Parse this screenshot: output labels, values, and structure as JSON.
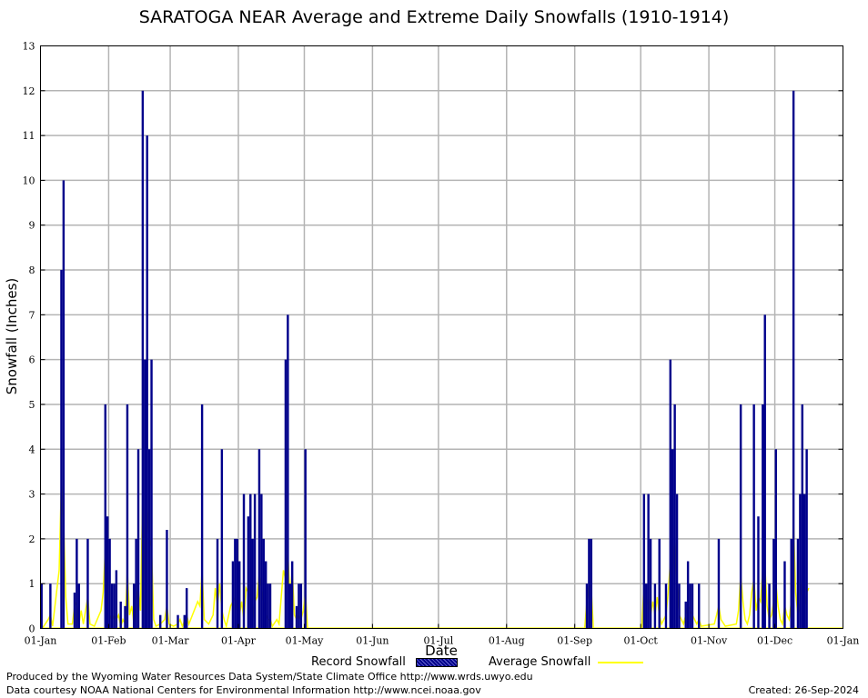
{
  "chart_data": {
    "type": "bar",
    "title": "SARATOGA NEAR Average and Extreme Daily Snowfalls (1910-1914)",
    "xlabel": "Date",
    "ylabel": "Snowfall (Inches)",
    "ylim": [
      0,
      13
    ],
    "yticks": [
      "0",
      "1",
      "2",
      "3",
      "4",
      "5",
      "6",
      "7",
      "8",
      "9",
      "10",
      "11",
      "12",
      "13"
    ],
    "xtick_labels": [
      "01-Jan",
      "01-Feb",
      "01-Mar",
      "01-Apr",
      "01-May",
      "01-Jun",
      "01-Jul",
      "01-Aug",
      "01-Sep",
      "01-Oct",
      "01-Nov",
      "01-Dec",
      "01-Jan"
    ],
    "xtick_days": [
      0,
      31,
      59,
      90,
      120,
      151,
      181,
      212,
      243,
      273,
      304,
      334,
      365
    ],
    "grid": true,
    "legend_position": "bottom",
    "series": [
      {
        "name": "Record Snowfall",
        "color": "#00008b",
        "points": [
          [
            0,
            1
          ],
          [
            4,
            1
          ],
          [
            9,
            8
          ],
          [
            10,
            10
          ],
          [
            15,
            0.8
          ],
          [
            16,
            2
          ],
          [
            17,
            1
          ],
          [
            21,
            2
          ],
          [
            29,
            5
          ],
          [
            30,
            2.5
          ],
          [
            31,
            2
          ],
          [
            32,
            1
          ],
          [
            33,
            1
          ],
          [
            34,
            1.3
          ],
          [
            36,
            0.6
          ],
          [
            38,
            0.5
          ],
          [
            39,
            5
          ],
          [
            42,
            1
          ],
          [
            43,
            2
          ],
          [
            44,
            4
          ],
          [
            46,
            12
          ],
          [
            47,
            6
          ],
          [
            48,
            11
          ],
          [
            49,
            4
          ],
          [
            50,
            6
          ],
          [
            54,
            0.3
          ],
          [
            57,
            2.2
          ],
          [
            62,
            0.3
          ],
          [
            65,
            0.3
          ],
          [
            66,
            0.9
          ],
          [
            73,
            5
          ],
          [
            80,
            2
          ],
          [
            82,
            4
          ],
          [
            87,
            1.5
          ],
          [
            88,
            2
          ],
          [
            89,
            2
          ],
          [
            90,
            1.5
          ],
          [
            92,
            3
          ],
          [
            94,
            2.5
          ],
          [
            95,
            3
          ],
          [
            96,
            2
          ],
          [
            97,
            3
          ],
          [
            99,
            4
          ],
          [
            100,
            3
          ],
          [
            101,
            2
          ],
          [
            102,
            1.5
          ],
          [
            103,
            1
          ],
          [
            104,
            1
          ],
          [
            111,
            6
          ],
          [
            112,
            7
          ],
          [
            113,
            1
          ],
          [
            114,
            1.5
          ],
          [
            116,
            0.5
          ],
          [
            117,
            1
          ],
          [
            118,
            1
          ],
          [
            120,
            4
          ],
          [
            248,
            1
          ],
          [
            249,
            2
          ],
          [
            250,
            2
          ],
          [
            274,
            3
          ],
          [
            275,
            1
          ],
          [
            276,
            3
          ],
          [
            277,
            2
          ],
          [
            279,
            1
          ],
          [
            281,
            2
          ],
          [
            284,
            1
          ],
          [
            286,
            6
          ],
          [
            287,
            4
          ],
          [
            288,
            5
          ],
          [
            289,
            3
          ],
          [
            290,
            1
          ],
          [
            293,
            0.6
          ],
          [
            294,
            1.5
          ],
          [
            295,
            1
          ],
          [
            296,
            1
          ],
          [
            299,
            1
          ],
          [
            308,
            2
          ],
          [
            318,
            5
          ],
          [
            324,
            5
          ],
          [
            326,
            2.5
          ],
          [
            328,
            5
          ],
          [
            329,
            7
          ],
          [
            331,
            1
          ],
          [
            333,
            2
          ],
          [
            334,
            4
          ],
          [
            338,
            1.5
          ],
          [
            341,
            2
          ],
          [
            342,
            12
          ],
          [
            344,
            2
          ],
          [
            345,
            3
          ],
          [
            346,
            5
          ],
          [
            347,
            3
          ],
          [
            348,
            4
          ]
        ]
      },
      {
        "name": "Average Snowfall",
        "color": "#ffff00",
        "points": [
          [
            0,
            0
          ],
          [
            1,
            0.05
          ],
          [
            3,
            0.2
          ],
          [
            4,
            0.3
          ],
          [
            5,
            0.05
          ],
          [
            8,
            1.3
          ],
          [
            9,
            3.3
          ],
          [
            10,
            2.4
          ],
          [
            11,
            0.7
          ],
          [
            12,
            0.1
          ],
          [
            14,
            0.1
          ],
          [
            15,
            0.5
          ],
          [
            16,
            0.6
          ],
          [
            17,
            0.1
          ],
          [
            18,
            0.4
          ],
          [
            19,
            0.1
          ],
          [
            21,
            0.7
          ],
          [
            22,
            0.1
          ],
          [
            24,
            0.05
          ],
          [
            27,
            0.4
          ],
          [
            28,
            0.8
          ],
          [
            29,
            1.8
          ],
          [
            30,
            1.0
          ],
          [
            31,
            0.3
          ],
          [
            32,
            0.2
          ],
          [
            33,
            0.3
          ],
          [
            34,
            0.2
          ],
          [
            35,
            0.3
          ],
          [
            36,
            0.05
          ],
          [
            37,
            0.2
          ],
          [
            38,
            0.1
          ],
          [
            39,
            1.3
          ],
          [
            40,
            0.3
          ],
          [
            41,
            0.5
          ],
          [
            42,
            0.1
          ],
          [
            43,
            0.6
          ],
          [
            44,
            0.9
          ],
          [
            45,
            0.4
          ],
          [
            46,
            3.0
          ],
          [
            47,
            1.0
          ],
          [
            48,
            2.7
          ],
          [
            49,
            2.0
          ],
          [
            50,
            1.8
          ],
          [
            51,
            0.2
          ],
          [
            52,
            0.05
          ],
          [
            54,
            0.1
          ],
          [
            56,
            0.2
          ],
          [
            57,
            0.5
          ],
          [
            58,
            0.1
          ],
          [
            60,
            0.05
          ],
          [
            62,
            0.1
          ],
          [
            63,
            0.2
          ],
          [
            64,
            0.05
          ],
          [
            66,
            0.3
          ],
          [
            67,
            0.1
          ],
          [
            71,
            0.6
          ],
          [
            72,
            0.5
          ],
          [
            73,
            1.3
          ],
          [
            74,
            0.2
          ],
          [
            76,
            0.1
          ],
          [
            78,
            0.3
          ],
          [
            79,
            0.9
          ],
          [
            80,
            0.5
          ],
          [
            81,
            1.0
          ],
          [
            82,
            0.4
          ],
          [
            83,
            0.2
          ],
          [
            84,
            0.05
          ],
          [
            86,
            0.5
          ],
          [
            87,
            0.6
          ],
          [
            88,
            0.7
          ],
          [
            89,
            0.4
          ],
          [
            90,
            0.3
          ],
          [
            91,
            0.6
          ],
          [
            92,
            0.2
          ],
          [
            93,
            0.9
          ],
          [
            94,
            0.8
          ],
          [
            95,
            0.7
          ],
          [
            96,
            0.2
          ],
          [
            97,
            0.6
          ],
          [
            98,
            0.7
          ],
          [
            99,
            1.2
          ],
          [
            100,
            0.9
          ],
          [
            101,
            0.6
          ],
          [
            102,
            0.3
          ],
          [
            103,
            0.2
          ],
          [
            104,
            0.2
          ],
          [
            105,
            0.05
          ],
          [
            107,
            0.2
          ],
          [
            108,
            0.1
          ],
          [
            110,
            1.3
          ],
          [
            111,
            1.1
          ],
          [
            112,
            1.7
          ],
          [
            113,
            0.7
          ],
          [
            114,
            1.3
          ],
          [
            115,
            0.3
          ],
          [
            116,
            0.2
          ],
          [
            117,
            0.3
          ],
          [
            118,
            0.2
          ],
          [
            119,
            0.4
          ],
          [
            120,
            0.8
          ],
          [
            121,
            0
          ],
          [
            247,
            0
          ],
          [
            248,
            0.6
          ],
          [
            249,
            1.0
          ],
          [
            250,
            0.9
          ],
          [
            251,
            0
          ],
          [
            273,
            0
          ],
          [
            274,
            1.0
          ],
          [
            275,
            0.5
          ],
          [
            276,
            0.7
          ],
          [
            277,
            0.3
          ],
          [
            278,
            0.6
          ],
          [
            279,
            0.3
          ],
          [
            280,
            0.7
          ],
          [
            281,
            0.3
          ],
          [
            282,
            0.1
          ],
          [
            283,
            0.2
          ],
          [
            284,
            0.3
          ],
          [
            285,
            0.8
          ],
          [
            286,
            1.5
          ],
          [
            287,
            1.3
          ],
          [
            288,
            2.0
          ],
          [
            289,
            1.0
          ],
          [
            290,
            0.3
          ],
          [
            291,
            0.2
          ],
          [
            292,
            0.1
          ],
          [
            293,
            0.3
          ],
          [
            294,
            0.5
          ],
          [
            295,
            0.4
          ],
          [
            296,
            0.3
          ],
          [
            297,
            0.2
          ],
          [
            298,
            0.1
          ],
          [
            299,
            0.2
          ],
          [
            300,
            0.05
          ],
          [
            306,
            0.1
          ],
          [
            307,
            0.3
          ],
          [
            308,
            0.5
          ],
          [
            309,
            0.2
          ],
          [
            311,
            0.05
          ],
          [
            316,
            0.1
          ],
          [
            317,
            0.4
          ],
          [
            318,
            1.2
          ],
          [
            319,
            0.6
          ],
          [
            320,
            0.2
          ],
          [
            321,
            0.1
          ],
          [
            322,
            0.3
          ],
          [
            323,
            0.8
          ],
          [
            324,
            1.1
          ],
          [
            325,
            0.4
          ],
          [
            326,
            0.7
          ],
          [
            327,
            0.6
          ],
          [
            328,
            1.3
          ],
          [
            329,
            1.4
          ],
          [
            330,
            0.5
          ],
          [
            331,
            0.2
          ],
          [
            332,
            0.3
          ],
          [
            333,
            0.6
          ],
          [
            334,
            1.0
          ],
          [
            335,
            0.5
          ],
          [
            336,
            0.2
          ],
          [
            337,
            0.1
          ],
          [
            338,
            0.5
          ],
          [
            339,
            0.3
          ],
          [
            340,
            0.2
          ],
          [
            341,
            0.6
          ],
          [
            342,
            2.4
          ],
          [
            343,
            0.8
          ],
          [
            344,
            0.3
          ],
          [
            345,
            0.6
          ],
          [
            346,
            1.1
          ],
          [
            347,
            0.5
          ],
          [
            348,
            0.8
          ],
          [
            349,
            0.9
          ]
        ]
      }
    ]
  },
  "legend": {
    "record_label": "Record Snowfall",
    "average_label": "Average Snowfall"
  },
  "footer": {
    "produced_by": "Produced by the Wyoming Water Resources Data System/State Climate Office http://www.wrds.uwyo.edu",
    "data_courtesy": "Data courtesy NOAA National Centers for Environmental Information http://www.ncei.noaa.gov",
    "created": "Created:  26-Sep-2024"
  }
}
